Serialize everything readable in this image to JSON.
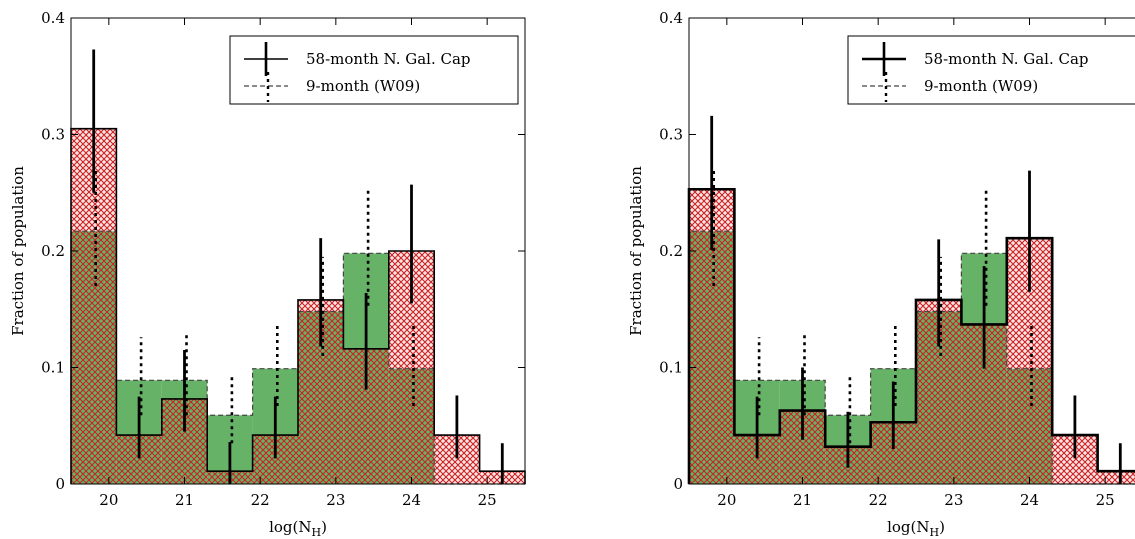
{
  "chart_data": [
    {
      "type": "bar",
      "subtype": "step-histogram",
      "xlabel": "log(N_H)",
      "xlabel_main": "log(N",
      "xlabel_sub": "H",
      "xlabel_close": ")",
      "ylabel": "Fraction of population",
      "xlim": [
        19.5,
        25.5
      ],
      "ylim": [
        0,
        0.4
      ],
      "xticks": [
        20,
        21,
        22,
        23,
        24,
        25
      ],
      "yticks": [
        0,
        0.1,
        0.2,
        0.3,
        0.4
      ],
      "ytick_labels": [
        "0",
        "0.1",
        "0.2",
        "0.3",
        "0.4"
      ],
      "legend_position": "top-right",
      "bin_edges": [
        19.5,
        20.1,
        20.7,
        21.3,
        21.9,
        22.5,
        23.1,
        23.7,
        24.3,
        24.9,
        25.5
      ],
      "series": [
        {
          "name": "58-month N. Gal. Cap",
          "style": "solid step with error bars, red cross-hatch fill",
          "color": "#000000",
          "fill": "#cc2222",
          "x": [
            19.8,
            20.4,
            21.0,
            21.6,
            22.2,
            22.8,
            23.4,
            24.0,
            24.6,
            25.2
          ],
          "values": [
            0.305,
            0.042,
            0.073,
            0.011,
            0.042,
            0.158,
            0.116,
            0.2,
            0.042,
            0.011
          ],
          "err_low": [
            0.055,
            0.02,
            0.028,
            0.011,
            0.02,
            0.04,
            0.035,
            0.045,
            0.02,
            0.011
          ],
          "err_high": [
            0.068,
            0.033,
            0.042,
            0.025,
            0.033,
            0.053,
            0.048,
            0.057,
            0.034,
            0.024
          ]
        },
        {
          "name": "9-month (W09)",
          "style": "dashed step with dotted error bars, green fill",
          "color": "#444444",
          "fill": "#66b266",
          "x": [
            19.8,
            20.4,
            21.0,
            21.6,
            22.2,
            22.8,
            23.4,
            24.0,
            24.6,
            25.2
          ],
          "values": [
            0.217,
            0.089,
            0.089,
            0.059,
            0.099,
            0.148,
            0.198,
            0.099,
            0,
            0
          ],
          "err_low": [
            0.047,
            0.03,
            0.03,
            0.024,
            0.032,
            0.038,
            0.045,
            0.032,
            0,
            0
          ],
          "err_high": [
            0.052,
            0.037,
            0.039,
            0.033,
            0.039,
            0.047,
            0.055,
            0.04,
            0,
            0
          ]
        }
      ]
    },
    {
      "type": "bar",
      "subtype": "step-histogram",
      "xlabel": "log(N_H)",
      "xlabel_main": "log(N",
      "xlabel_sub": "H",
      "xlabel_close": ")",
      "ylabel": "Fraction of population",
      "xlim": [
        19.5,
        25.5
      ],
      "ylim": [
        0,
        0.4
      ],
      "xticks": [
        20,
        21,
        22,
        23,
        24,
        25
      ],
      "yticks": [
        0,
        0.1,
        0.2,
        0.3,
        0.4
      ],
      "ytick_labels": [
        "0",
        "0.1",
        "0.2",
        "0.3",
        "0.4"
      ],
      "legend_position": "top-right",
      "bin_edges": [
        19.5,
        20.1,
        20.7,
        21.3,
        21.9,
        22.5,
        23.1,
        23.7,
        24.3,
        24.9,
        25.5
      ],
      "series": [
        {
          "name": "58-month N. Gal. Cap",
          "style": "thick solid step with error bars, red cross-hatch fill",
          "color": "#000000",
          "fill": "#cc2222",
          "x": [
            19.8,
            20.4,
            21.0,
            21.6,
            22.2,
            22.8,
            23.4,
            24.0,
            24.6,
            25.2
          ],
          "values": [
            0.253,
            0.042,
            0.063,
            0.032,
            0.053,
            0.158,
            0.137,
            0.211,
            0.042,
            0.011
          ],
          "err_low": [
            0.052,
            0.02,
            0.025,
            0.018,
            0.023,
            0.04,
            0.038,
            0.046,
            0.02,
            0.011
          ],
          "err_high": [
            0.063,
            0.033,
            0.037,
            0.03,
            0.035,
            0.052,
            0.05,
            0.058,
            0.034,
            0.024
          ]
        },
        {
          "name": "9-month (W09)",
          "style": "dashed step with dotted error bars, green fill",
          "color": "#444444",
          "fill": "#66b266",
          "x": [
            19.8,
            20.4,
            21.0,
            21.6,
            22.2,
            22.8,
            23.4,
            24.0,
            24.6,
            25.2
          ],
          "values": [
            0.217,
            0.089,
            0.089,
            0.059,
            0.099,
            0.148,
            0.198,
            0.099,
            0,
            0
          ],
          "err_low": [
            0.047,
            0.03,
            0.03,
            0.024,
            0.032,
            0.038,
            0.045,
            0.032,
            0,
            0
          ],
          "err_high": [
            0.052,
            0.037,
            0.039,
            0.033,
            0.039,
            0.047,
            0.055,
            0.04,
            0,
            0
          ]
        }
      ]
    }
  ]
}
